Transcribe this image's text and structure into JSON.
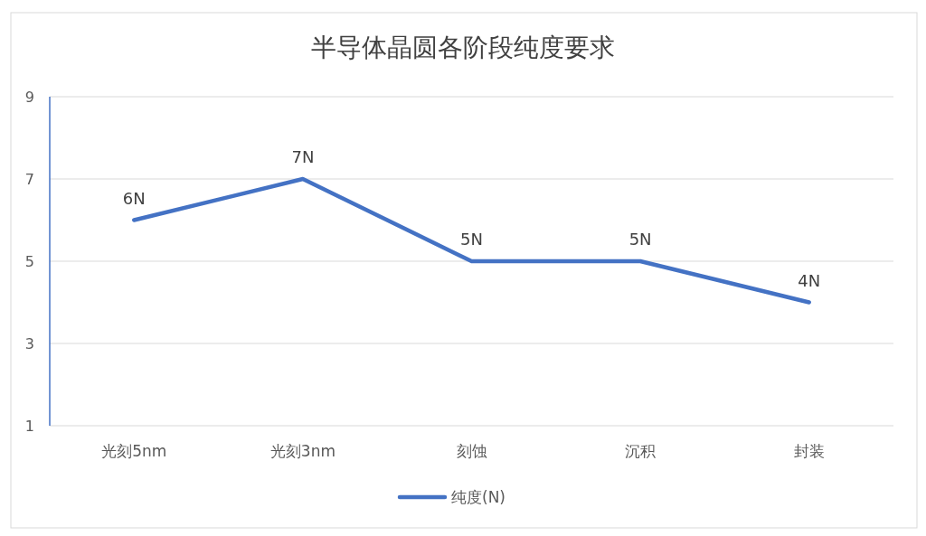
{
  "chart_data": {
    "type": "line",
    "title": "半导体晶圆各阶段纯度要求",
    "categories": [
      "光刻5nm",
      "光刻3nm",
      "刻蚀",
      "沉积",
      "封装"
    ],
    "series": [
      {
        "name": "纯度(N)",
        "color": "#4472c4",
        "values": [
          6,
          7,
          5,
          5,
          4
        ],
        "value_labels": [
          "6N",
          "7N",
          "5N",
          "5N",
          "4N"
        ]
      }
    ],
    "ylim": [
      1,
      9
    ],
    "yticks": [
      1,
      3,
      5,
      7,
      9
    ],
    "grid": "y",
    "legend": "bottom"
  }
}
